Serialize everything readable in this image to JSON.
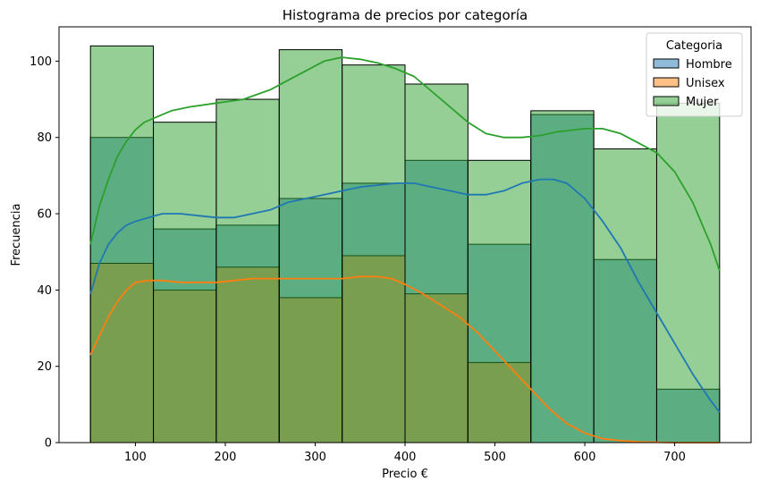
{
  "chart_data": {
    "type": "bar",
    "title": "Histograma de precios por categoría",
    "xlabel": "Precio €",
    "ylabel": "Frecuencia",
    "xlim": [
      15,
      785
    ],
    "ylim": [
      0,
      109
    ],
    "xticks": [
      100,
      200,
      300,
      400,
      500,
      600,
      700
    ],
    "yticks": [
      0,
      20,
      40,
      60,
      80,
      100
    ],
    "bin_edges": [
      50,
      120,
      190,
      260,
      330,
      400,
      470,
      540,
      610,
      680,
      750
    ],
    "legend": {
      "title": "Categoria",
      "position": "top-right"
    },
    "series": [
      {
        "name": "Hombre",
        "color": "#1f77b4",
        "counts": [
          80,
          56,
          57,
          64,
          68,
          74,
          52,
          86,
          48,
          14
        ],
        "kde": [
          [
            50,
            39
          ],
          [
            60,
            47
          ],
          [
            70,
            52
          ],
          [
            80,
            55
          ],
          [
            90,
            57
          ],
          [
            100,
            58
          ],
          [
            115,
            59
          ],
          [
            130,
            60
          ],
          [
            150,
            60
          ],
          [
            170,
            59.5
          ],
          [
            190,
            59
          ],
          [
            210,
            59
          ],
          [
            230,
            60
          ],
          [
            250,
            61
          ],
          [
            270,
            63
          ],
          [
            290,
            64
          ],
          [
            310,
            65
          ],
          [
            330,
            66
          ],
          [
            350,
            67
          ],
          [
            370,
            67.5
          ],
          [
            390,
            68
          ],
          [
            410,
            68
          ],
          [
            430,
            67
          ],
          [
            450,
            66
          ],
          [
            470,
            65
          ],
          [
            490,
            65
          ],
          [
            510,
            66
          ],
          [
            530,
            68
          ],
          [
            550,
            69
          ],
          [
            565,
            69
          ],
          [
            580,
            68
          ],
          [
            600,
            64
          ],
          [
            620,
            58
          ],
          [
            640,
            51
          ],
          [
            660,
            42
          ],
          [
            680,
            34
          ],
          [
            700,
            26
          ],
          [
            720,
            18
          ],
          [
            740,
            11
          ],
          [
            750,
            8
          ]
        ]
      },
      {
        "name": "Unisex",
        "color": "#ff7f0e",
        "counts": [
          47,
          40,
          46,
          38,
          49,
          39,
          21,
          0,
          0,
          0
        ],
        "kde": [
          [
            50,
            23
          ],
          [
            60,
            28
          ],
          [
            70,
            33
          ],
          [
            80,
            37
          ],
          [
            90,
            40
          ],
          [
            100,
            42
          ],
          [
            115,
            42.5
          ],
          [
            130,
            42.5
          ],
          [
            150,
            42
          ],
          [
            170,
            42
          ],
          [
            190,
            42
          ],
          [
            210,
            42.5
          ],
          [
            230,
            43
          ],
          [
            250,
            43
          ],
          [
            270,
            43
          ],
          [
            290,
            43
          ],
          [
            310,
            43
          ],
          [
            330,
            43
          ],
          [
            350,
            43.5
          ],
          [
            370,
            43.5
          ],
          [
            385,
            43
          ],
          [
            400,
            41.5
          ],
          [
            420,
            39
          ],
          [
            440,
            36
          ],
          [
            460,
            33
          ],
          [
            480,
            29
          ],
          [
            500,
            24
          ],
          [
            520,
            19
          ],
          [
            540,
            14
          ],
          [
            560,
            9
          ],
          [
            580,
            5
          ],
          [
            600,
            2.5
          ],
          [
            620,
            1
          ],
          [
            640,
            0.5
          ],
          [
            660,
            0.2
          ],
          [
            700,
            0
          ],
          [
            750,
            0
          ]
        ]
      },
      {
        "name": "Mujer",
        "color": "#2ca02c",
        "counts": [
          104,
          84,
          90,
          103,
          99,
          94,
          74,
          87,
          77,
          89
        ],
        "kde": [
          [
            50,
            52
          ],
          [
            60,
            62
          ],
          [
            70,
            69
          ],
          [
            80,
            75
          ],
          [
            90,
            79
          ],
          [
            100,
            82
          ],
          [
            110,
            84
          ],
          [
            120,
            85
          ],
          [
            140,
            87
          ],
          [
            160,
            88
          ],
          [
            190,
            89
          ],
          [
            220,
            90
          ],
          [
            250,
            92.5
          ],
          [
            270,
            95
          ],
          [
            290,
            97.5
          ],
          [
            310,
            100
          ],
          [
            330,
            101
          ],
          [
            350,
            100.5
          ],
          [
            370,
            99.5
          ],
          [
            390,
            98
          ],
          [
            410,
            96
          ],
          [
            430,
            92
          ],
          [
            450,
            88
          ],
          [
            470,
            84
          ],
          [
            490,
            81
          ],
          [
            510,
            80
          ],
          [
            530,
            80
          ],
          [
            550,
            80.5
          ],
          [
            570,
            81.5
          ],
          [
            600,
            82.3
          ],
          [
            620,
            82.3
          ],
          [
            640,
            81
          ],
          [
            660,
            78.5
          ],
          [
            680,
            76
          ],
          [
            700,
            71
          ],
          [
            720,
            63
          ],
          [
            740,
            52
          ],
          [
            750,
            45
          ]
        ]
      }
    ]
  }
}
